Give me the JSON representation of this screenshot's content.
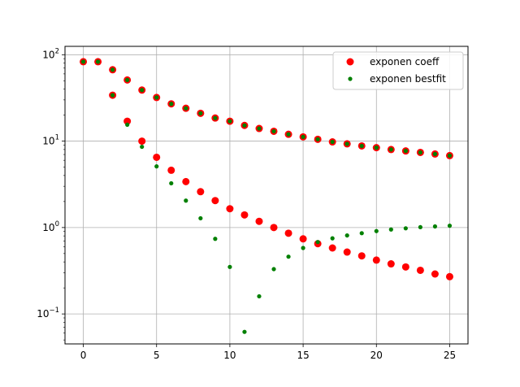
{
  "chart_data": {
    "type": "scatter",
    "title": "",
    "xlabel": "",
    "ylabel": "",
    "xscale": "linear",
    "yscale": "log",
    "xlim": [
      -1.25,
      26.25
    ],
    "ylim": [
      0.045,
      125
    ],
    "grid": true,
    "legend_position": "top-right",
    "x_ticks": [
      {
        "value": 0,
        "label": "0"
      },
      {
        "value": 5,
        "label": "5"
      },
      {
        "value": 10,
        "label": "10"
      },
      {
        "value": 15,
        "label": "15"
      },
      {
        "value": 20,
        "label": "20"
      },
      {
        "value": 25,
        "label": "25"
      }
    ],
    "y_ticks": [
      {
        "value": 0.1,
        "base": "10",
        "exp": "−1"
      },
      {
        "value": 1,
        "base": "10",
        "exp": "0"
      },
      {
        "value": 10,
        "base": "10",
        "exp": "1"
      },
      {
        "value": 100,
        "base": "10",
        "exp": "2"
      }
    ],
    "series": [
      {
        "name": "exponen coeff",
        "color": "#ff0000",
        "marker": "large-circle",
        "points": [
          [
            0,
            83
          ],
          [
            1,
            83
          ],
          [
            2,
            67
          ],
          [
            3,
            51
          ],
          [
            4,
            39
          ],
          [
            5,
            32
          ],
          [
            6,
            27
          ],
          [
            7,
            24
          ],
          [
            8,
            21
          ],
          [
            9,
            18.5
          ],
          [
            10,
            17
          ],
          [
            11,
            15.2
          ],
          [
            12,
            14
          ],
          [
            13,
            13
          ],
          [
            14,
            12
          ],
          [
            15,
            11.2
          ],
          [
            16,
            10.5
          ],
          [
            17,
            9.8
          ],
          [
            18,
            9.3
          ],
          [
            19,
            8.8
          ],
          [
            20,
            8.4
          ],
          [
            21,
            8
          ],
          [
            22,
            7.7
          ],
          [
            23,
            7.4
          ],
          [
            24,
            7.1
          ],
          [
            25,
            6.8
          ],
          [
            2,
            34
          ],
          [
            3,
            17
          ],
          [
            4,
            10
          ],
          [
            5,
            6.5
          ],
          [
            6,
            4.6
          ],
          [
            7,
            3.4
          ],
          [
            8,
            2.6
          ],
          [
            9,
            2.05
          ],
          [
            10,
            1.65
          ],
          [
            11,
            1.4
          ],
          [
            12,
            1.18
          ],
          [
            13,
            1
          ],
          [
            14,
            0.86
          ],
          [
            15,
            0.74
          ],
          [
            16,
            0.65
          ],
          [
            17,
            0.58
          ],
          [
            18,
            0.52
          ],
          [
            19,
            0.47
          ],
          [
            20,
            0.42
          ],
          [
            21,
            0.38
          ],
          [
            22,
            0.35
          ],
          [
            23,
            0.32
          ],
          [
            24,
            0.29
          ],
          [
            25,
            0.27
          ]
        ]
      },
      {
        "name": "exponen bestfit",
        "color": "#008000",
        "marker": "small-circle",
        "points": [
          [
            0,
            83
          ],
          [
            1,
            83
          ],
          [
            2,
            67
          ],
          [
            3,
            51
          ],
          [
            4,
            39
          ],
          [
            5,
            32
          ],
          [
            6,
            27
          ],
          [
            7,
            24
          ],
          [
            8,
            21
          ],
          [
            9,
            18.5
          ],
          [
            10,
            17
          ],
          [
            11,
            15.2
          ],
          [
            12,
            14
          ],
          [
            13,
            13
          ],
          [
            14,
            12
          ],
          [
            15,
            11.2
          ],
          [
            16,
            10.5
          ],
          [
            17,
            9.8
          ],
          [
            18,
            9.3
          ],
          [
            19,
            8.8
          ],
          [
            20,
            8.4
          ],
          [
            21,
            8
          ],
          [
            22,
            7.7
          ],
          [
            23,
            7.4
          ],
          [
            24,
            7.1
          ],
          [
            25,
            6.8
          ],
          [
            2,
            34
          ],
          [
            3,
            15.5
          ],
          [
            4,
            8.6
          ],
          [
            5,
            5.1
          ],
          [
            6,
            3.25
          ],
          [
            7,
            2.05
          ],
          [
            8,
            1.28
          ],
          [
            9,
            0.74
          ],
          [
            10,
            0.35
          ],
          [
            11,
            0.062
          ],
          [
            12,
            0.16
          ],
          [
            13,
            0.33
          ],
          [
            14,
            0.46
          ],
          [
            15,
            0.58
          ],
          [
            16,
            0.68
          ],
          [
            17,
            0.75
          ],
          [
            18,
            0.81
          ],
          [
            19,
            0.86
          ],
          [
            20,
            0.91
          ],
          [
            21,
            0.95
          ],
          [
            22,
            0.98
          ],
          [
            23,
            1.01
          ],
          [
            24,
            1.03
          ],
          [
            25,
            1.05
          ]
        ]
      }
    ]
  }
}
